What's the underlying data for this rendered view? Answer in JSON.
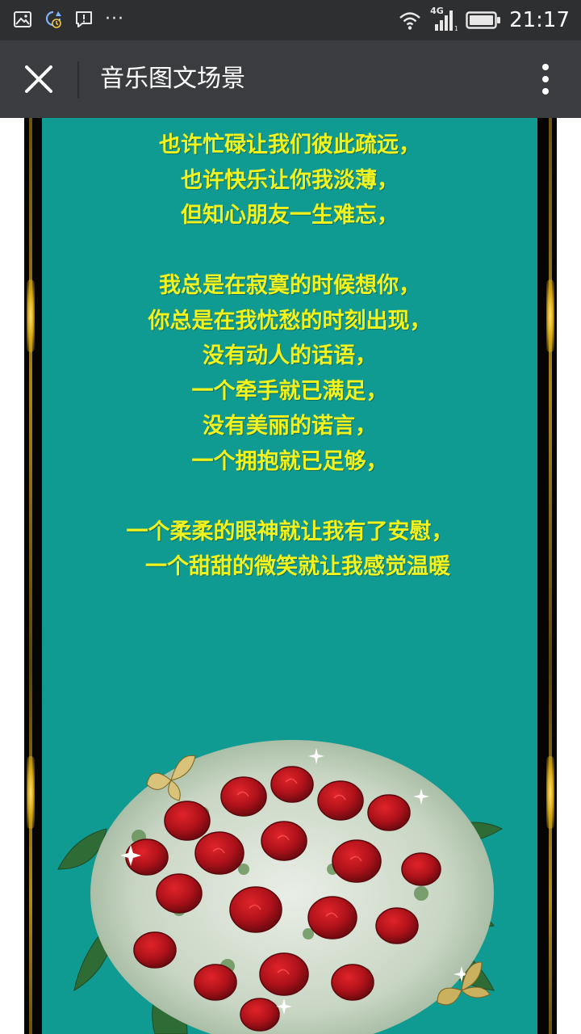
{
  "status_bar": {
    "time": "21:17",
    "network": "4G",
    "icons": [
      "image-icon",
      "sync-icon",
      "message-alert-icon",
      "more-dots-icon",
      "wifi-icon",
      "signal-icon",
      "battery-icon"
    ],
    "overflow_indicator": "···"
  },
  "title_bar": {
    "title": "音乐图文场景",
    "icons": [
      "close-icon",
      "more-vert-icon"
    ]
  },
  "poem": {
    "stanzas": [
      [
        "也许忙碌让我们彼此疏远，",
        "也许快乐让你我淡薄，",
        "但知心朋友一生难忘，"
      ],
      [
        "我总是在寂寞的时候想你，",
        "你总是在我忧愁的时刻出现，",
        "没有动人的话语，",
        "一个牵手就已满足，",
        "没有美丽的诺言，",
        "一个拥抱就已足够，"
      ],
      [
        "一个柔柔的眼神就让我有了安慰，",
        "一个甜甜的微笑就让我感觉温暖"
      ]
    ]
  },
  "image": {
    "subject": "red-rose-bouquet-icon",
    "decorations": [
      "butterfly-icon",
      "sparkle-icon"
    ]
  },
  "colors": {
    "status_bar_bg": "#2e2f31",
    "title_bar_bg": "#3b3c40",
    "panel_bg": "#0f9a92",
    "poem_text": "#f2f21d",
    "frame": "#050505",
    "gold_trim": "#d8a912"
  }
}
